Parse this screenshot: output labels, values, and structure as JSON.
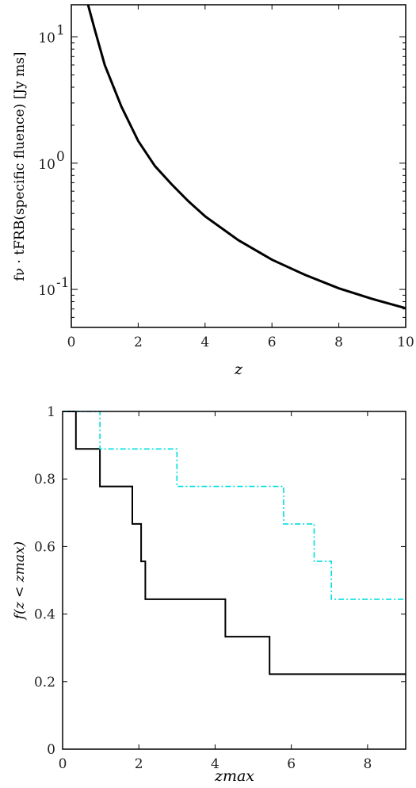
{
  "chart_data": [
    {
      "type": "line",
      "ylabel": "fν · tFRB(specific fluence) [Jy ms]",
      "xlabel": "z",
      "xlim": [
        0,
        10
      ],
      "ylim": [
        0.05,
        18
      ],
      "yscale": "log",
      "grid": false,
      "xticks": [
        "0",
        "2",
        "4",
        "6",
        "8",
        "10"
      ],
      "yticks": [
        {
          "value": 0.1,
          "base": "10",
          "exp": "-1"
        },
        {
          "value": 1,
          "base": "10",
          "exp": "0"
        },
        {
          "value": 10,
          "base": "10",
          "exp": "1"
        }
      ],
      "series": [
        {
          "color": "#000000",
          "x": [
            0.5,
            0.7,
            1.0,
            1.5,
            2.0,
            2.5,
            3.0,
            3.5,
            4.0,
            5.0,
            6.0,
            7.0,
            8.0,
            9.0,
            10.0
          ],
          "y": [
            18,
            11.5,
            6.0,
            2.8,
            1.5,
            0.95,
            0.68,
            0.5,
            0.38,
            0.245,
            0.172,
            0.13,
            0.102,
            0.084,
            0.071
          ]
        }
      ]
    },
    {
      "type": "line",
      "ylabel": "f(z < zmax)",
      "xlabel": "zmax",
      "xlim": [
        0,
        9
      ],
      "ylim": [
        0,
        1
      ],
      "grid": false,
      "xticks": [
        "0",
        "2",
        "4",
        "6",
        "8"
      ],
      "yticks": [
        "0",
        "0.2",
        "0.4",
        "0.6",
        "0.8",
        "1"
      ],
      "series": [
        {
          "color": "#000000",
          "style": "solid",
          "steps_x": [
            0,
            0.35,
            0.98,
            1.83,
            2.06,
            2.17,
            4.27,
            5.43,
            9
          ],
          "steps_y": [
            1,
            0.889,
            0.778,
            0.667,
            0.556,
            0.444,
            0.333,
            0.222,
            0.222
          ]
        },
        {
          "color": "#00dede",
          "style": "dashdot",
          "steps_x": [
            0,
            0.98,
            3.0,
            5.8,
            6.6,
            7.05,
            9
          ],
          "steps_y": [
            1,
            0.889,
            0.778,
            0.667,
            0.556,
            0.444,
            0.444
          ]
        }
      ]
    }
  ]
}
